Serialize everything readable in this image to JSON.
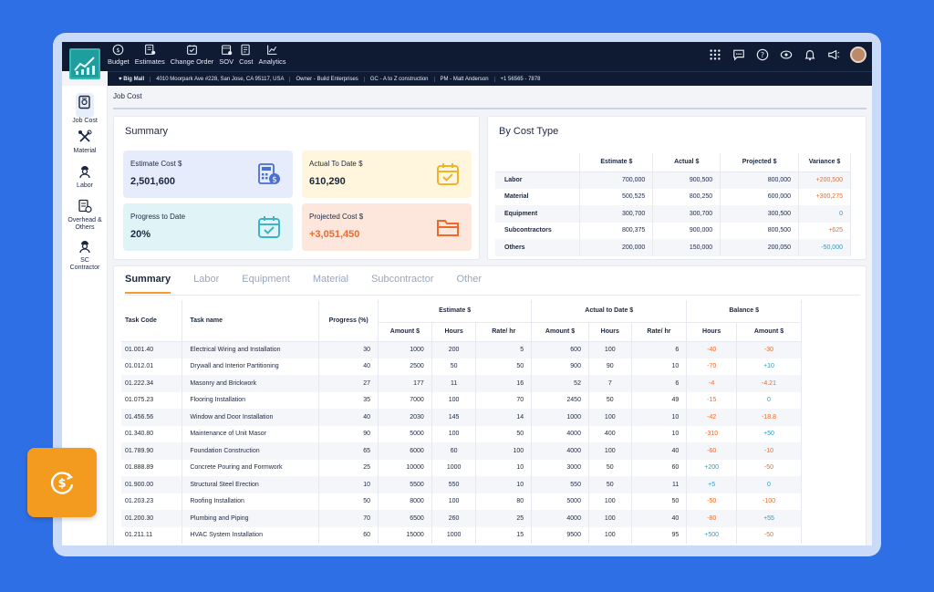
{
  "nav": [
    {
      "label": "Budget",
      "icon": "budget-icon"
    },
    {
      "label": "Estimates",
      "icon": "estimates-icon"
    },
    {
      "label": "Change Order",
      "icon": "change-order-icon"
    },
    {
      "label": "SOV",
      "icon": "sov-icon"
    },
    {
      "label": "Cost",
      "icon": "cost-icon"
    },
    {
      "label": "Analytics",
      "icon": "analytics-icon"
    }
  ],
  "infobar": {
    "project": "Big Mall",
    "address": "4010 Moorpark Ave #228, San Jose, CA 95117, USA",
    "owner": "Owner - Build Enterprises",
    "gc": "GC - A to Z construction",
    "pm": "PM - Matt Anderson",
    "phone": "+1 56565 - 7878"
  },
  "sidebar": [
    {
      "label": "Job Cost"
    },
    {
      "label": "Material"
    },
    {
      "label": "Labor"
    },
    {
      "label": "Overhead & Others"
    },
    {
      "label": "SC Contractor"
    }
  ],
  "breadcrumb": "Job Cost",
  "summary": {
    "title": "Summary",
    "cards": [
      {
        "label": "Estimate Cost $",
        "value": "2,501,600"
      },
      {
        "label": "Actual To Date $",
        "value": "610,290"
      },
      {
        "label": "Progress to Date",
        "value": "20%"
      },
      {
        "label": "Projected Cost $",
        "value": "+3,051,450"
      }
    ]
  },
  "cost_type": {
    "title": "By Cost Type",
    "headers": [
      "",
      "Estimate $",
      "Actual $",
      "Projected $",
      "Variance $"
    ],
    "rows": [
      {
        "name": "Labor",
        "estimate": "700,000",
        "actual": "900,500",
        "projected": "800,000",
        "variance": "+200,500",
        "tone": "pos"
      },
      {
        "name": "Material",
        "estimate": "500,525",
        "actual": "800,250",
        "projected": "600,000",
        "variance": "+300,275",
        "tone": "pos"
      },
      {
        "name": "Equipment",
        "estimate": "300,700",
        "actual": "300,700",
        "projected": "300,500",
        "variance": "0",
        "tone": "zero"
      },
      {
        "name": "Subcontractors",
        "estimate": "800,375",
        "actual": "900,000",
        "projected": "800,500",
        "variance": "+625",
        "tone": "pos"
      },
      {
        "name": "Others",
        "estimate": "200,000",
        "actual": "150,000",
        "projected": "200,050",
        "variance": "-50,000",
        "tone": "neg"
      }
    ]
  },
  "tabs": [
    "Summary",
    "Labor",
    "Equipment",
    "Material",
    "Subcontractor",
    "Other"
  ],
  "tasks": {
    "headers": {
      "code": "Task Code",
      "name": "Task name",
      "progress": "Progress (%)",
      "estimate": "Estimate  $",
      "actual": "Actual to Date $",
      "balance": "Balance $",
      "amount": "Amount $",
      "hours": "Hours",
      "rate": "Rate/ hr"
    },
    "rows": [
      {
        "code": "01.001.40",
        "name": "Electrical Wiring and Installation",
        "progress": "30",
        "e_amt": "1000",
        "e_hrs": "200",
        "e_rate": "5",
        "a_amt": "600",
        "a_hrs": "100",
        "a_rate": "6",
        "b_hrs": "-40",
        "b_hrs_tone": "pos",
        "b_amt": "-30",
        "b_amt_tone": "pos"
      },
      {
        "code": "01.012.01",
        "name": "Drywall and Interior Partitioning",
        "progress": "40",
        "e_amt": "2500",
        "e_hrs": "50",
        "e_rate": "50",
        "a_amt": "900",
        "a_hrs": "90",
        "a_rate": "10",
        "b_hrs": "-70",
        "b_hrs_tone": "pos",
        "b_amt": "+10",
        "b_amt_tone": "neg"
      },
      {
        "code": "01.222.34",
        "name": "Masonry and Brickwork",
        "progress": "27",
        "e_amt": "177",
        "e_hrs": "11",
        "e_rate": "16",
        "a_amt": "52",
        "a_hrs": "7",
        "a_rate": "6",
        "b_hrs": "-4",
        "b_hrs_tone": "pos",
        "b_amt": "-4.21",
        "b_amt_tone": "pos"
      },
      {
        "code": "01.075.23",
        "name": "Flooring Installation",
        "progress": "35",
        "e_amt": "7000",
        "e_hrs": "100",
        "e_rate": "70",
        "a_amt": "2450",
        "a_hrs": "50",
        "a_rate": "49",
        "b_hrs": "-15",
        "b_hrs_tone": "pos",
        "b_amt": "0",
        "b_amt_tone": "neg"
      },
      {
        "code": "01.456.56",
        "name": "Window and Door Installation",
        "progress": "40",
        "e_amt": "2030",
        "e_hrs": "145",
        "e_rate": "14",
        "a_amt": "1000",
        "a_hrs": "100",
        "a_rate": "10",
        "b_hrs": "-42",
        "b_hrs_tone": "pos",
        "b_amt": "-18.8",
        "b_amt_tone": "pos"
      },
      {
        "code": "01.340.80",
        "name": "Maintenance of Unit Masor",
        "progress": "90",
        "e_amt": "5000",
        "e_hrs": "100",
        "e_rate": "50",
        "a_amt": "4000",
        "a_hrs": "400",
        "a_rate": "10",
        "b_hrs": "-310",
        "b_hrs_tone": "pos",
        "b_amt": "+50",
        "b_amt_tone": "neg"
      },
      {
        "code": "01.789.90",
        "name": "Foundation Construction",
        "progress": "65",
        "e_amt": "6000",
        "e_hrs": "60",
        "e_rate": "100",
        "a_amt": "4000",
        "a_hrs": "100",
        "a_rate": "40",
        "b_hrs": "-60",
        "b_hrs_tone": "pos",
        "b_amt": "-10",
        "b_amt_tone": "pos"
      },
      {
        "code": "01.888.89",
        "name": "Concrete Pouring and Formwork",
        "progress": "25",
        "e_amt": "10000",
        "e_hrs": "1000",
        "e_rate": "10",
        "a_amt": "3000",
        "a_hrs": "50",
        "a_rate": "60",
        "b_hrs": "+200",
        "b_hrs_tone": "neg",
        "b_amt": "-50",
        "b_amt_tone": "pos"
      },
      {
        "code": "01.900.00",
        "name": "Structural Steel Erection",
        "progress": "10",
        "e_amt": "5500",
        "e_hrs": "550",
        "e_rate": "10",
        "a_amt": "550",
        "a_hrs": "50",
        "a_rate": "11",
        "b_hrs": "+5",
        "b_hrs_tone": "neg",
        "b_amt": "0",
        "b_amt_tone": "neg"
      },
      {
        "code": "01.203.23",
        "name": "Roofing Installation",
        "progress": "50",
        "e_amt": "8000",
        "e_hrs": "100",
        "e_rate": "80",
        "a_amt": "5000",
        "a_hrs": "100",
        "a_rate": "50",
        "b_hrs": "-50",
        "b_hrs_tone": "pos",
        "b_amt": "-100",
        "b_amt_tone": "pos"
      },
      {
        "code": "01.200.30",
        "name": "Plumbing and Piping",
        "progress": "70",
        "e_amt": "6500",
        "e_hrs": "260",
        "e_rate": "25",
        "a_amt": "4000",
        "a_hrs": "100",
        "a_rate": "40",
        "b_hrs": "-80",
        "b_hrs_tone": "pos",
        "b_amt": "+55",
        "b_amt_tone": "neg"
      },
      {
        "code": "01.211.11",
        "name": "HVAC System Installation",
        "progress": "60",
        "e_amt": "15000",
        "e_hrs": "1000",
        "e_rate": "15",
        "a_amt": "9500",
        "a_hrs": "100",
        "a_rate": "95",
        "b_hrs": "+500",
        "b_hrs_tone": "neg",
        "b_amt": "-50",
        "b_amt_tone": "pos"
      }
    ]
  },
  "colors": {
    "accent": "#f39b1f",
    "brand_dark": "#0f1b33",
    "positive_text": "#ef6a2a",
    "negative_text": "#1d9fd2"
  }
}
